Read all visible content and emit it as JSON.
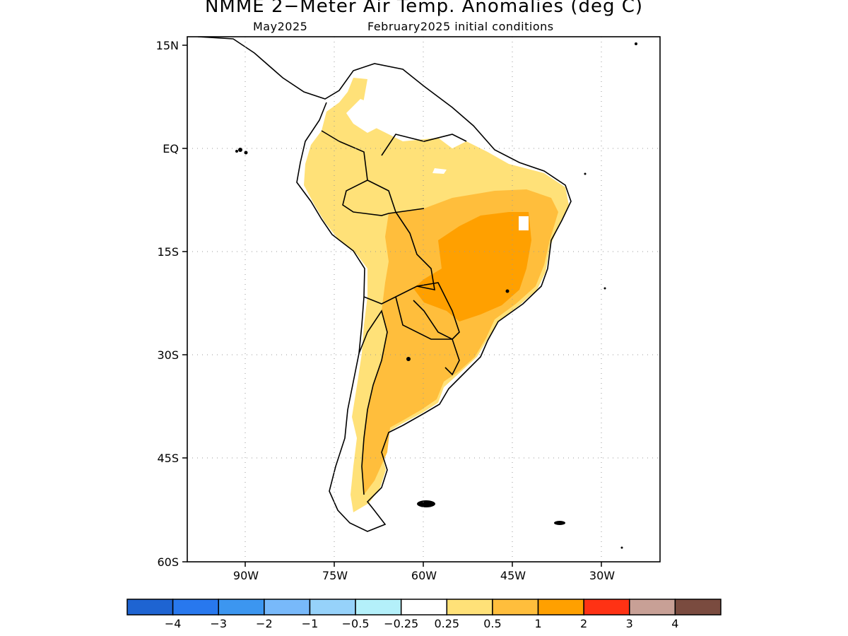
{
  "title": "NMME 2−Meter Air Temp. Anomalies (deg C)",
  "subtitle_left": "May2025",
  "subtitle_right": "February2025 initial conditions",
  "map": {
    "region": "South America",
    "lat_range": [
      -60,
      15
    ],
    "lon_range": [
      -100,
      -20
    ],
    "lat_ticks": [
      "15N",
      "EQ",
      "15S",
      "30S",
      "45S",
      "60S"
    ],
    "lon_ticks": [
      "90W",
      "75W",
      "60W",
      "45W",
      "30W"
    ],
    "grid": "dotted"
  },
  "legend": {
    "colors": [
      "#1e64d2",
      "#2878ee",
      "#3c96f0",
      "#78b9fa",
      "#96d2fa",
      "#b4f0fa",
      "#ffffff",
      "#ffe178",
      "#ffbe3c",
      "#ffa000",
      "#ff3214",
      "#c8a096",
      "#7a4b3f"
    ],
    "labels": [
      "−4",
      "−3",
      "−2",
      "−1",
      "−0.5",
      "−0.25",
      "0.25",
      "0.5",
      "1",
      "2",
      "3",
      "4"
    ]
  }
}
